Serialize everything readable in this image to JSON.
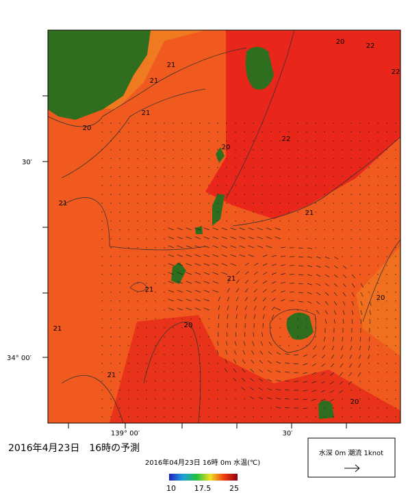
{
  "map": {
    "title": "2016年4月23日　16時の予測",
    "subtitle": "2016年04月23日 16時 0m 水温(℃)",
    "lat_labels": [
      "30′",
      "34° 00′"
    ],
    "lon_labels": [
      "139° 00′",
      "30′"
    ],
    "colorbar_labels": [
      "10",
      "17.5",
      "25"
    ],
    "legend": {
      "text": "水深 0m 潮流 1knot"
    },
    "contour_labels": [
      "20",
      "21",
      "21",
      "20",
      "22",
      "22",
      "20",
      "22",
      "21",
      "21",
      "21",
      "21",
      "21",
      "20",
      "21",
      "20",
      "21",
      "20"
    ]
  }
}
